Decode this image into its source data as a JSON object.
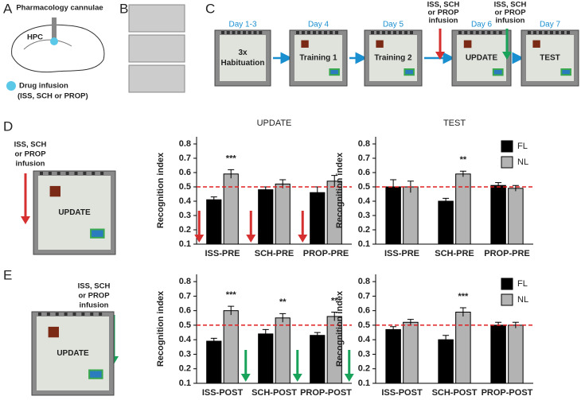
{
  "panel_labels": [
    "A",
    "B",
    "C",
    "D",
    "E"
  ],
  "panel_a": {
    "title": "Pharmacology cannulae",
    "region": "HPC",
    "legend": [
      "Drug infusion",
      "(ISS, SCH or PROP)"
    ]
  },
  "panel_c": {
    "days": [
      "Day 1-3",
      "Day 4",
      "Day 5",
      "Day 6",
      "Day 7"
    ],
    "boxes": [
      [
        "3x",
        "Habituation"
      ],
      [
        "Training 1"
      ],
      [
        "Training 2"
      ],
      [
        "UPDATE"
      ],
      [
        "TEST"
      ]
    ],
    "infusion": [
      "ISS, SCH",
      "or PROP",
      "infusion"
    ]
  },
  "panel_d": {
    "infusion": [
      "ISS, SCH",
      "or PROP",
      "infusion"
    ],
    "box": "UPDATE"
  },
  "panel_e": {
    "infusion": [
      "ISS, SCH",
      "or PROP",
      "infusion"
    ],
    "box": "UPDATE"
  },
  "chart_data": [
    {
      "type": "bar",
      "title": "UPDATE",
      "ylabel": "Recognition index",
      "categories": [
        "ISS-PRE",
        "SCH-PRE",
        "PROP-PRE"
      ],
      "series": [
        {
          "name": "FL",
          "color": "#000000",
          "values": [
            0.41,
            0.48,
            0.46
          ],
          "errors": [
            0.02,
            0.02,
            0.04
          ]
        },
        {
          "name": "NL",
          "color": "#b3b3b3",
          "values": [
            0.59,
            0.52,
            0.54
          ],
          "errors": [
            0.03,
            0.03,
            0.04
          ]
        }
      ],
      "ylim": [
        0.1,
        0.85
      ],
      "yticks": [
        0.1,
        0.2,
        0.3,
        0.4,
        0.5,
        0.6,
        0.7,
        0.8
      ],
      "hline": 0.5,
      "annotations": [
        {
          "text": "***",
          "category": "ISS-PRE",
          "series": "NL"
        }
      ],
      "arrows": {
        "color": "#d62f2f",
        "side": "left"
      }
    },
    {
      "type": "bar",
      "title": "TEST",
      "ylabel": "Recognition index",
      "categories": [
        "ISS-PRE",
        "SCH-PRE",
        "PROP-PRE"
      ],
      "series": [
        {
          "name": "FL",
          "color": "#000000",
          "values": [
            0.5,
            0.4,
            0.51
          ],
          "errors": [
            0.05,
            0.02,
            0.02
          ]
        },
        {
          "name": "NL",
          "color": "#b3b3b3",
          "values": [
            0.5,
            0.59,
            0.49
          ],
          "errors": [
            0.04,
            0.02,
            0.02
          ]
        }
      ],
      "ylim": [
        0.1,
        0.85
      ],
      "yticks": [
        0.1,
        0.2,
        0.3,
        0.4,
        0.5,
        0.6,
        0.7,
        0.8
      ],
      "hline": 0.5,
      "annotations": [
        {
          "text": "**",
          "category": "SCH-PRE",
          "series": "NL"
        }
      ],
      "legend": "upper right"
    },
    {
      "type": "bar",
      "ylabel": "Recognition index",
      "categories": [
        "ISS-POST",
        "SCH-POST",
        "PROP-POST"
      ],
      "series": [
        {
          "name": "FL",
          "color": "#000000",
          "values": [
            0.39,
            0.44,
            0.43
          ],
          "errors": [
            0.02,
            0.03,
            0.02
          ]
        },
        {
          "name": "NL",
          "color": "#b3b3b3",
          "values": [
            0.6,
            0.55,
            0.56
          ],
          "errors": [
            0.03,
            0.03,
            0.03
          ]
        }
      ],
      "ylim": [
        0.1,
        0.85
      ],
      "yticks": [
        0.1,
        0.2,
        0.3,
        0.4,
        0.5,
        0.6,
        0.7,
        0.8
      ],
      "hline": 0.5,
      "annotations": [
        {
          "text": "***",
          "category": "ISS-POST",
          "series": "NL"
        },
        {
          "text": "**",
          "category": "SCH-POST",
          "series": "NL"
        },
        {
          "text": "**",
          "category": "PROP-POST",
          "series": "NL"
        }
      ],
      "arrows": {
        "color": "#19a35a",
        "side": "right"
      }
    },
    {
      "type": "bar",
      "ylabel": "Recognition index",
      "categories": [
        "ISS-POST",
        "SCH-POST",
        "PROP-POST"
      ],
      "series": [
        {
          "name": "FL",
          "color": "#000000",
          "values": [
            0.47,
            0.4,
            0.5
          ],
          "errors": [
            0.02,
            0.03,
            0.02
          ]
        },
        {
          "name": "NL",
          "color": "#b3b3b3",
          "values": [
            0.52,
            0.59,
            0.5
          ],
          "errors": [
            0.02,
            0.03,
            0.02
          ]
        }
      ],
      "ylim": [
        0.1,
        0.85
      ],
      "yticks": [
        0.1,
        0.2,
        0.3,
        0.4,
        0.5,
        0.6,
        0.7,
        0.8
      ],
      "hline": 0.5,
      "annotations": [
        {
          "text": "***",
          "category": "SCH-POST",
          "series": "NL"
        }
      ],
      "legend": "upper right"
    }
  ]
}
